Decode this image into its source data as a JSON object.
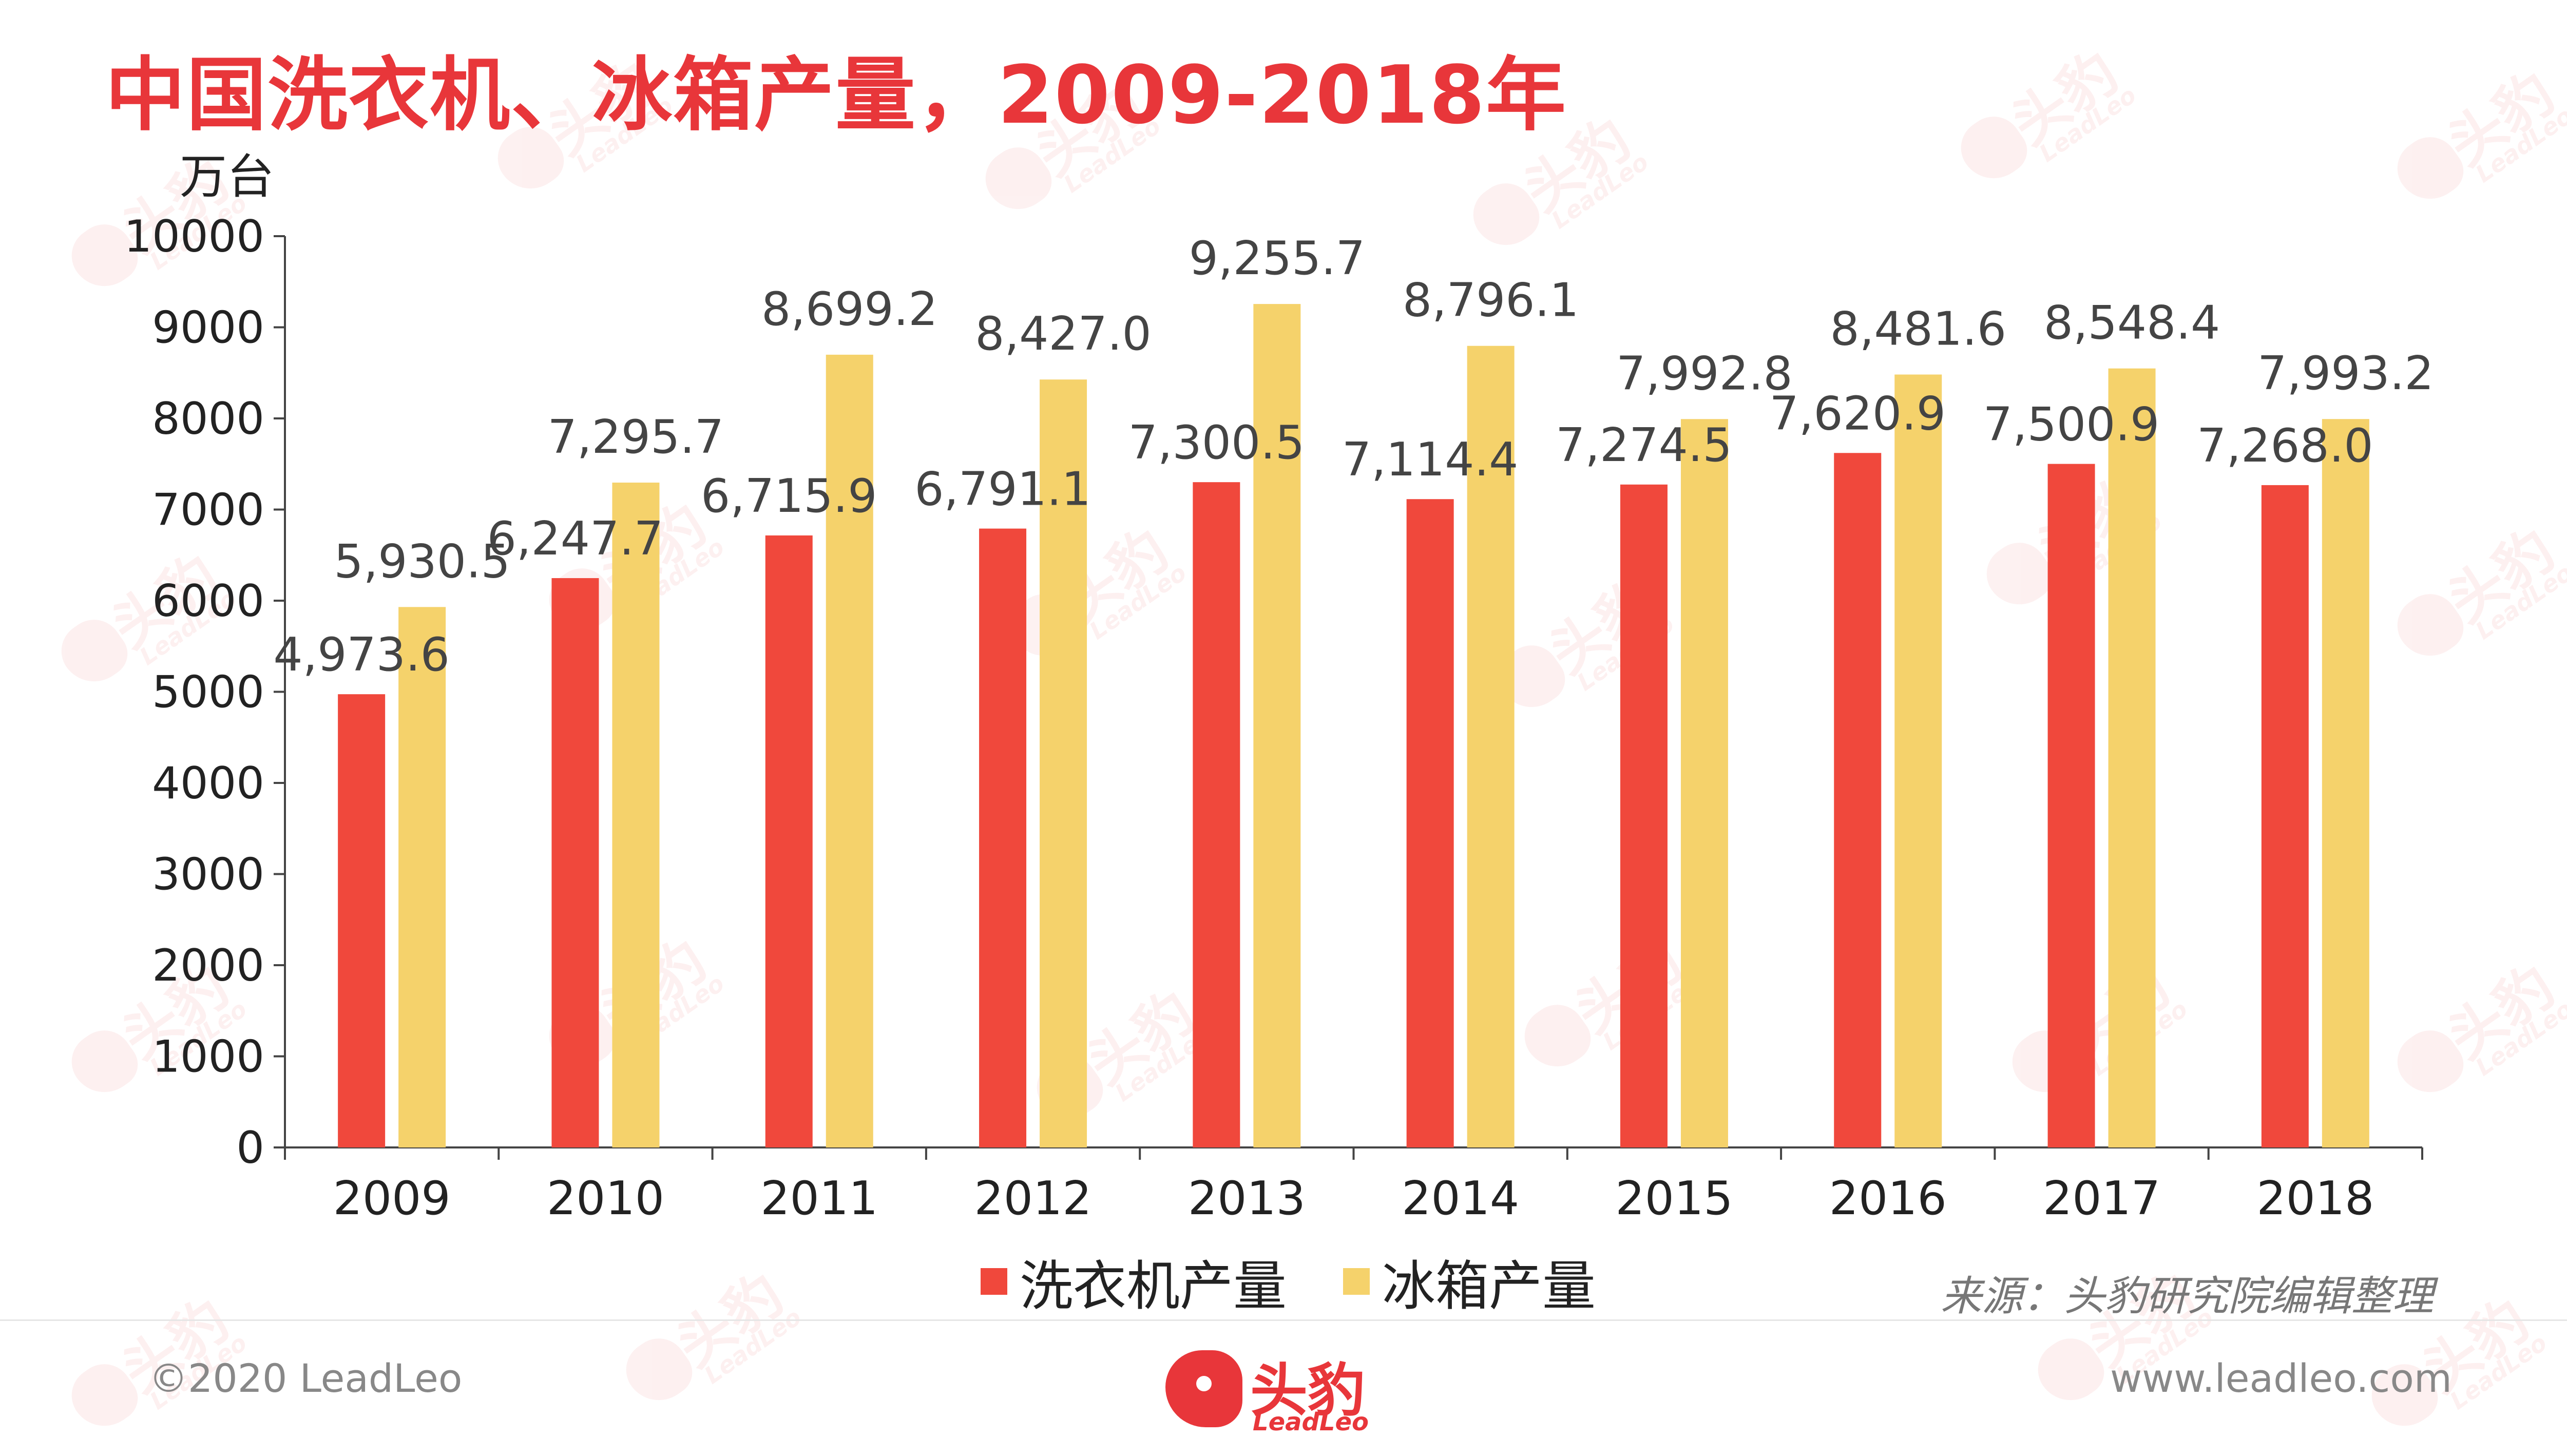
{
  "header": {
    "title": "中国洗衣机、冰箱产量，2009-2018年"
  },
  "chart_data": {
    "type": "bar",
    "title": "中国洗衣机、冰箱产量，2009-2018年",
    "ylabel": "万台",
    "xlabel": "",
    "ylim": [
      0,
      10000
    ],
    "yticks": [
      "0",
      "1000",
      "2000",
      "3000",
      "4000",
      "5000",
      "6000",
      "7000",
      "8000",
      "9000",
      "10000"
    ],
    "categories": [
      "2009",
      "2010",
      "2011",
      "2012",
      "2013",
      "2014",
      "2015",
      "2016",
      "2017",
      "2018"
    ],
    "series": [
      {
        "name": "洗衣机产量",
        "color": "#f0483c",
        "values": [
          4973.6,
          6247.7,
          6715.9,
          6791.1,
          7300.5,
          7114.4,
          7274.5,
          7620.9,
          7500.9,
          7268.0
        ],
        "labels": [
          "4,973.6",
          "6,247.7",
          "6,715.9",
          "6,791.1",
          "7,300.5",
          "7,114.4",
          "7,274.5",
          "7,620.9",
          "7,500.9",
          "7,268.0"
        ]
      },
      {
        "name": "冰箱产量",
        "color": "#f5d26b",
        "values": [
          5930.5,
          7295.7,
          8699.2,
          8427.0,
          9255.7,
          8796.1,
          7992.8,
          8481.6,
          8548.4,
          7993.2
        ],
        "labels": [
          "5,930.5",
          "7,295.7",
          "8,699.2",
          "8,427.0",
          "9,255.7",
          "8,796.1",
          "7,992.8",
          "8,481.6",
          "8,548.4",
          "7,993.2"
        ]
      }
    ],
    "grid": false,
    "legend": "bottom-center"
  },
  "source_note": "来源：头豹研究院编辑整理",
  "footer": {
    "copyright": "©2020 LeadLeo",
    "website": "www.leadleo.com"
  },
  "brand": {
    "name_cn": "头豹",
    "name_en": "LeadLeo",
    "color": "#e8363a"
  },
  "watermark": {
    "text_cn": "头豹",
    "text_en": "LeadLeo"
  }
}
